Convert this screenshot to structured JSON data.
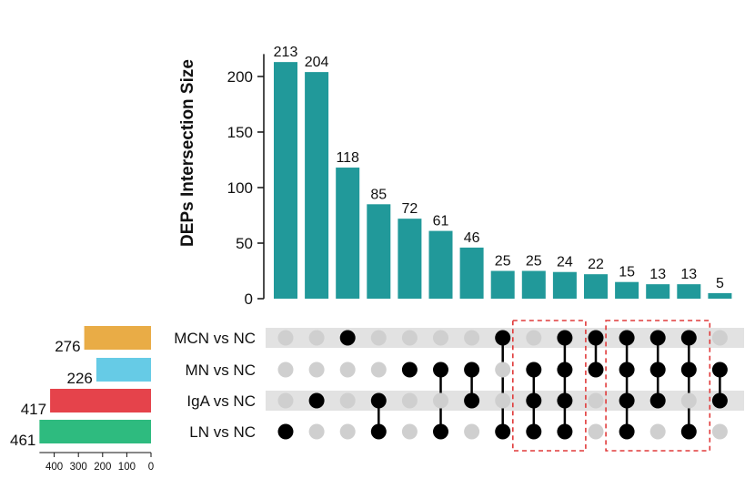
{
  "chart_data": {
    "type": "upset",
    "ylabel": "DEPs Intersection Size",
    "ylim": [
      0,
      230
    ],
    "yticks": [
      0,
      50,
      100,
      150,
      200
    ],
    "set_size_ticks": [
      400,
      300,
      200,
      100,
      0
    ],
    "set_size_max": 461,
    "sets": [
      {
        "name": "MCN vs NC",
        "size": 276,
        "color": "#E9AC46"
      },
      {
        "name": "MN vs NC",
        "size": 226,
        "color": "#66CBE6"
      },
      {
        "name": "IgA vs NC",
        "size": 417,
        "color": "#E5434B"
      },
      {
        "name": "LN vs NC",
        "size": 461,
        "color": "#2EBB7F"
      }
    ],
    "intersections": [
      {
        "size": 213,
        "members": [
          3
        ]
      },
      {
        "size": 204,
        "members": [
          2
        ]
      },
      {
        "size": 118,
        "members": [
          0
        ]
      },
      {
        "size": 85,
        "members": [
          2,
          3
        ]
      },
      {
        "size": 72,
        "members": [
          1
        ]
      },
      {
        "size": 61,
        "members": [
          1,
          3
        ]
      },
      {
        "size": 46,
        "members": [
          1,
          2
        ]
      },
      {
        "size": 25,
        "members": [
          0,
          3
        ]
      },
      {
        "size": 25,
        "members": [
          1,
          2,
          3
        ]
      },
      {
        "size": 24,
        "members": [
          0,
          1,
          2,
          3
        ]
      },
      {
        "size": 22,
        "members": [
          0,
          1
        ]
      },
      {
        "size": 15,
        "members": [
          0,
          1,
          2,
          3
        ]
      },
      {
        "size": 13,
        "members": [
          0,
          1,
          2
        ]
      },
      {
        "size": 13,
        "members": [
          0,
          1,
          3
        ]
      },
      {
        "size": 5,
        "members": [
          1,
          2
        ]
      }
    ],
    "highlight_groups": [
      [
        8,
        9
      ],
      [
        11,
        12,
        13
      ]
    ],
    "bar_color": "#21999A",
    "dot_active_color": "#000000",
    "dot_inactive_color": "#CFCFCF",
    "stripe_color": "#E2E2E2",
    "highlight_color": "#E03A3A"
  }
}
